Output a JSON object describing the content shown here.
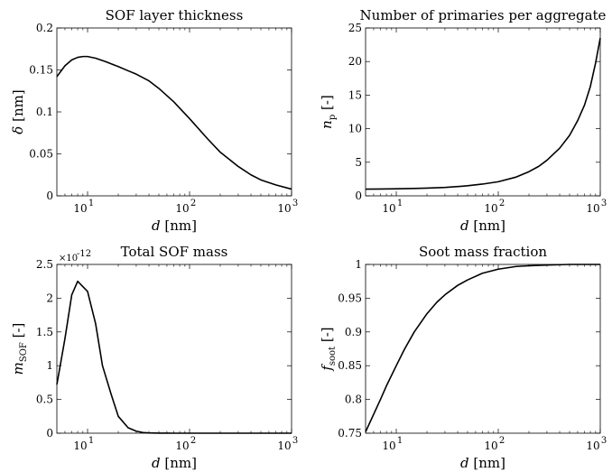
{
  "chart_data": [
    {
      "id": "sof-thickness",
      "type": "line",
      "title": "SOF layer thickness",
      "xlabel": "d [nm]",
      "ylabel": "δ [nm]",
      "xscale": "log",
      "xlim": [
        5,
        1000
      ],
      "ylim": [
        0,
        0.2
      ],
      "xticks": [
        10,
        100,
        1000
      ],
      "xtick_labels": [
        "10",
        "10",
        "10"
      ],
      "xtick_exponents": [
        "1",
        "2",
        "3"
      ],
      "yticks": [
        0,
        0.05,
        0.1,
        0.15,
        0.2
      ],
      "ytick_labels": [
        "0",
        "0.05",
        "0.1",
        "0.15",
        "0.2"
      ],
      "series": [
        {
          "x": [
            5,
            6,
            7,
            8,
            9,
            10,
            12,
            15,
            20,
            25,
            30,
            40,
            50,
            70,
            100,
            150,
            200,
            300,
            400,
            500,
            700,
            1000
          ],
          "y": [
            0.142,
            0.155,
            0.162,
            0.165,
            0.166,
            0.166,
            0.164,
            0.16,
            0.154,
            0.149,
            0.145,
            0.137,
            0.128,
            0.112,
            0.092,
            0.068,
            0.052,
            0.035,
            0.025,
            0.019,
            0.013,
            0.008
          ]
        }
      ]
    },
    {
      "id": "primaries",
      "type": "line",
      "title": "Number of primaries per aggregate",
      "xlabel": "d [nm]",
      "ylabel": "n_p [-]",
      "xscale": "log",
      "xlim": [
        5,
        1000
      ],
      "ylim": [
        0,
        25
      ],
      "xticks": [
        10,
        100,
        1000
      ],
      "xtick_labels": [
        "10",
        "10",
        "10"
      ],
      "xtick_exponents": [
        "1",
        "2",
        "3"
      ],
      "yticks": [
        0,
        5,
        10,
        15,
        20,
        25
      ],
      "ytick_labels": [
        "0",
        "5",
        "10",
        "15",
        "20",
        "25"
      ],
      "series": [
        {
          "x": [
            5,
            7,
            10,
            15,
            20,
            30,
            40,
            50,
            70,
            100,
            150,
            200,
            250,
            300,
            400,
            500,
            600,
            700,
            800,
            900,
            1000
          ],
          "y": [
            1.0,
            1.02,
            1.05,
            1.1,
            1.15,
            1.25,
            1.38,
            1.5,
            1.75,
            2.1,
            2.8,
            3.6,
            4.4,
            5.3,
            7.1,
            9.0,
            11.2,
            13.5,
            16.3,
            19.8,
            23.5
          ]
        }
      ]
    },
    {
      "id": "sof-mass",
      "type": "line",
      "title": "Total SOF mass",
      "xlabel": "d [nm]",
      "ylabel": "m_SOF [-]",
      "xscale": "log",
      "xlim": [
        5,
        1000
      ],
      "ylim": [
        0,
        2.5
      ],
      "y_multiplier": "×10",
      "y_multiplier_exponent": "-12",
      "xticks": [
        10,
        100,
        1000
      ],
      "xtick_labels": [
        "10",
        "10",
        "10"
      ],
      "xtick_exponents": [
        "1",
        "2",
        "3"
      ],
      "yticks": [
        0,
        0.5,
        1,
        1.5,
        2,
        2.5
      ],
      "ytick_labels": [
        "0",
        "0.5",
        "1",
        "1.5",
        "2",
        "2.5"
      ],
      "series": [
        {
          "x": [
            5,
            6,
            7,
            8,
            10,
            12,
            14,
            17,
            20,
            25,
            30,
            35,
            40,
            50,
            60,
            70,
            100,
            200,
            500,
            1000
          ],
          "y": [
            0.72,
            1.4,
            2.05,
            2.25,
            2.1,
            1.62,
            1.0,
            0.58,
            0.25,
            0.08,
            0.03,
            0.01,
            0.004,
            0.001,
            0.0003,
            0.0001,
            0,
            0,
            0,
            0
          ]
        }
      ]
    },
    {
      "id": "soot-fraction",
      "type": "line",
      "title": "Soot mass fraction",
      "xlabel": "d [nm]",
      "ylabel": "f_soot [-]",
      "xscale": "log",
      "xlim": [
        5,
        1000
      ],
      "ylim": [
        0.75,
        1
      ],
      "xticks": [
        10,
        100,
        1000
      ],
      "xtick_labels": [
        "10",
        "10",
        "10"
      ],
      "xtick_exponents": [
        "1",
        "2",
        "3"
      ],
      "yticks": [
        0.75,
        0.8,
        0.85,
        0.9,
        0.95,
        1
      ],
      "ytick_labels": [
        "0.75",
        "0.8",
        "0.85",
        "0.9",
        "0.95",
        "1"
      ],
      "series": [
        {
          "x": [
            5,
            6,
            7,
            8,
            10,
            12,
            15,
            20,
            25,
            30,
            40,
            50,
            70,
            100,
            150,
            200,
            300,
            500,
            700,
            1000
          ],
          "y": [
            0.752,
            0.778,
            0.8,
            0.82,
            0.85,
            0.874,
            0.9,
            0.927,
            0.944,
            0.955,
            0.969,
            0.977,
            0.987,
            0.993,
            0.997,
            0.998,
            0.999,
            1.0,
            1.0,
            1.0
          ]
        }
      ]
    }
  ]
}
